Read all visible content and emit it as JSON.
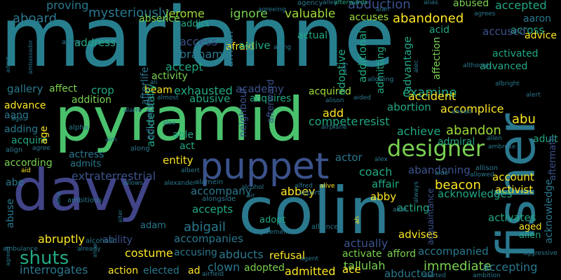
{
  "palette": {
    "background": "#000000",
    "colors": [
      "#440154",
      "#46327e",
      "#365c8d",
      "#277f8e",
      "#1fa187",
      "#4ac16d",
      "#a0da39",
      "#fde725"
    ]
  },
  "words": [
    {
      "text": "marianne",
      "color": "#277f8e"
    },
    {
      "text": "pyramid",
      "color": "#4ac16d"
    },
    {
      "text": "colin",
      "color": "#2a788e"
    },
    {
      "text": "davy",
      "color": "#414487"
    },
    {
      "text": "fisher",
      "color": "#2a788e"
    },
    {
      "text": "puppet",
      "color": "#3b528b"
    },
    {
      "text": "designer",
      "color": "#7ad151"
    },
    {
      "text": "shuts",
      "color": "#22a884"
    },
    {
      "text": "abduction",
      "color": "#3b528b"
    },
    {
      "text": "abandoned",
      "color": "#fde725"
    },
    {
      "text": "mysteriously",
      "color": "#2a788e"
    },
    {
      "text": "jerome",
      "color": "#a0da39"
    },
    {
      "text": "ignore",
      "color": "#7ad151"
    },
    {
      "text": "valuable",
      "color": "#a0da39"
    },
    {
      "text": "aboard",
      "color": "#2a788e"
    },
    {
      "text": "proving",
      "color": "#2a788e"
    },
    {
      "text": "absence",
      "color": "#7ad151"
    },
    {
      "text": "addict",
      "color": "#22a884"
    },
    {
      "text": "accuses",
      "color": "#a0da39"
    },
    {
      "text": "abused",
      "color": "#7ad151"
    },
    {
      "text": "accepted",
      "color": "#22a884"
    },
    {
      "text": "aaron",
      "color": "#2a788e"
    },
    {
      "text": "across",
      "color": "#22a884"
    },
    {
      "text": "advice",
      "color": "#fde725"
    },
    {
      "text": "accused",
      "color": "#3b528b"
    },
    {
      "text": "activated",
      "color": "#22a884"
    },
    {
      "text": "address",
      "color": "#22a884"
    },
    {
      "text": "access",
      "color": "#3b528b"
    },
    {
      "text": "abraham",
      "color": "#2a788e"
    },
    {
      "text": "accept",
      "color": "#22a884"
    },
    {
      "text": "activity",
      "color": "#7ad151"
    },
    {
      "text": "gallery",
      "color": "#2a788e"
    },
    {
      "text": "affect",
      "color": "#7ad151"
    },
    {
      "text": "addition",
      "color": "#7ad151"
    },
    {
      "text": "crop",
      "color": "#22a884"
    },
    {
      "text": "beam",
      "color": "#fde725"
    },
    {
      "text": "exhausted",
      "color": "#22a884"
    },
    {
      "text": "academy",
      "color": "#3b528b"
    },
    {
      "text": "acquired",
      "color": "#a0da39"
    },
    {
      "text": "acquires",
      "color": "#22a884"
    },
    {
      "text": "abusive",
      "color": "#22a884"
    },
    {
      "text": "examine",
      "color": "#22a884"
    },
    {
      "text": "accident",
      "color": "#fde725"
    },
    {
      "text": "accomplice",
      "color": "#fde725"
    },
    {
      "text": "advanced",
      "color": "#22a884"
    },
    {
      "text": "advance",
      "color": "#fde725"
    },
    {
      "text": "aang",
      "color": "#2a788e"
    },
    {
      "text": "adding",
      "color": "#2a788e"
    },
    {
      "text": "acquire",
      "color": "#22a884"
    },
    {
      "text": "according",
      "color": "#7ad151"
    },
    {
      "text": "actress",
      "color": "#2a788e"
    },
    {
      "text": "admits",
      "color": "#2a788e"
    },
    {
      "text": "abortion",
      "color": "#22a884"
    },
    {
      "text": "compete",
      "color": "#22a884"
    },
    {
      "text": "resist",
      "color": "#22a884"
    },
    {
      "text": "achieve",
      "color": "#22a884"
    },
    {
      "text": "abandon",
      "color": "#a0da39"
    },
    {
      "text": "admiral",
      "color": "#22a884"
    },
    {
      "text": "abu",
      "color": "#fde725"
    },
    {
      "text": "adult",
      "color": "#22a884"
    },
    {
      "text": "able",
      "color": "#22a884"
    },
    {
      "text": "act",
      "color": "#22a884"
    },
    {
      "text": "entity",
      "color": "#fde725"
    },
    {
      "text": "add",
      "color": "#fde725"
    },
    {
      "text": "actor",
      "color": "#2a788e"
    },
    {
      "text": "coach",
      "color": "#22a884"
    },
    {
      "text": "abandoning",
      "color": "#3b528b"
    },
    {
      "text": "extraterrestrial",
      "color": "#3b528b"
    },
    {
      "text": "abe",
      "color": "#2a788e"
    },
    {
      "text": "affair",
      "color": "#22a884"
    },
    {
      "text": "beacon",
      "color": "#fde725"
    },
    {
      "text": "account",
      "color": "#fde725"
    },
    {
      "text": "activist",
      "color": "#fde725"
    },
    {
      "text": "abbey",
      "color": "#fde725"
    },
    {
      "text": "accompany",
      "color": "#2a788e"
    },
    {
      "text": "accepts",
      "color": "#22a884"
    },
    {
      "text": "abby",
      "color": "#fde725"
    },
    {
      "text": "acknowledges",
      "color": "#22a884"
    },
    {
      "text": "acting",
      "color": "#22a884"
    },
    {
      "text": "activates",
      "color": "#22a884"
    },
    {
      "text": "aged",
      "color": "#fde725"
    },
    {
      "text": "alien",
      "color": "#22a884"
    },
    {
      "text": "abigail",
      "color": "#2a788e"
    },
    {
      "text": "adam",
      "color": "#2a788e"
    },
    {
      "text": "accompanies",
      "color": "#2a788e"
    },
    {
      "text": "adopt",
      "color": "#22a884"
    },
    {
      "text": "actually",
      "color": "#3b528b"
    },
    {
      "text": "advises",
      "color": "#fde725"
    },
    {
      "text": "abruptly",
      "color": "#fde725"
    },
    {
      "text": "ability",
      "color": "#3b528b"
    },
    {
      "text": "costume",
      "color": "#fde725"
    },
    {
      "text": "accusing",
      "color": "#2a788e"
    },
    {
      "text": "abducts",
      "color": "#2a788e"
    },
    {
      "text": "accompanied",
      "color": "#2a788e"
    },
    {
      "text": "interrogates",
      "color": "#2a788e"
    },
    {
      "text": "refusal",
      "color": "#fde725"
    },
    {
      "text": "activate",
      "color": "#7ad151"
    },
    {
      "text": "afford",
      "color": "#7ad151"
    },
    {
      "text": "tallulah",
      "color": "#7ad151"
    },
    {
      "text": "immediate",
      "color": "#7ad151"
    },
    {
      "text": "accepting",
      "color": "#2a788e"
    },
    {
      "text": "action",
      "color": "#fde725"
    },
    {
      "text": "elected",
      "color": "#2a788e"
    },
    {
      "text": "ad",
      "color": "#fde725"
    },
    {
      "text": "clown",
      "color": "#2a788e"
    },
    {
      "text": "adopted",
      "color": "#7ad151"
    },
    {
      "text": "admitted",
      "color": "#fde725"
    },
    {
      "text": "ace",
      "color": "#fde725"
    },
    {
      "text": "abducted",
      "color": "#2a788e"
    },
    {
      "text": "acknowledge",
      "color": "#2a788e"
    },
    {
      "text": "afterlife",
      "color": "#2a788e"
    },
    {
      "text": "adventure",
      "color": "#3b528b"
    },
    {
      "text": "accidentally",
      "color": "#22a884"
    },
    {
      "text": "afraid",
      "color": "#fde725"
    },
    {
      "text": "african",
      "color": "#2a788e"
    },
    {
      "text": "active",
      "color": "#22a884"
    },
    {
      "text": "actual",
      "color": "#22a884"
    },
    {
      "text": "adoptive",
      "color": "#22a884"
    },
    {
      "text": "additional",
      "color": "#22a884"
    },
    {
      "text": "admitting",
      "color": "#22a884"
    },
    {
      "text": "advantage",
      "color": "#22a884"
    },
    {
      "text": "affection",
      "color": "#7ad151"
    },
    {
      "text": "acid",
      "color": "#22a884"
    },
    {
      "text": "age",
      "color": "#fde725"
    },
    {
      "text": "abuse",
      "color": "#2a788e"
    },
    {
      "text": "neighbour",
      "color": "#3b528b"
    },
    {
      "text": "afterward",
      "color": "#3b528b"
    },
    {
      "text": "aftermath",
      "color": "#3b528b"
    },
    {
      "text": "acquaintance",
      "color": "#3b528b"
    },
    {
      "text": "alcoholic",
      "color": "#2a788e"
    },
    {
      "text": "agency",
      "color": "#2a788e"
    },
    {
      "text": "afterwards",
      "color": "#22a884"
    },
    {
      "text": "alias",
      "color": "#2a788e"
    },
    {
      "text": "alan",
      "color": "#2a788e"
    },
    {
      "text": "agrees",
      "color": "#2a788e"
    },
    {
      "text": "agreeing",
      "color": "#2a788e"
    },
    {
      "text": "alley",
      "color": "#2a788e"
    },
    {
      "text": "alone",
      "color": "#2a788e"
    },
    {
      "text": "admit",
      "color": "#2a788e"
    },
    {
      "text": "ambassador",
      "color": "#2a788e"
    },
    {
      "text": "alternate",
      "color": "#2a788e"
    },
    {
      "text": "aging",
      "color": "#2a788e"
    },
    {
      "text": "ally",
      "color": "#2a788e"
    },
    {
      "text": "although",
      "color": "#2a788e"
    },
    {
      "text": "alec",
      "color": "#2a788e"
    },
    {
      "text": "allowing",
      "color": "#2a788e"
    },
    {
      "text": "ali",
      "color": "#2a788e"
    },
    {
      "text": "albright",
      "color": "#2a788e"
    },
    {
      "text": "alert",
      "color": "#2a788e"
    },
    {
      "text": "almost",
      "color": "#2a788e"
    },
    {
      "text": "alison",
      "color": "#2a788e"
    },
    {
      "text": "aided",
      "color": "#2a788e"
    },
    {
      "text": "ahead",
      "color": "#2a788e"
    },
    {
      "text": "alarm",
      "color": "#2a788e"
    },
    {
      "text": "ago",
      "color": "#2a788e"
    },
    {
      "text": "alpha",
      "color": "#2a788e"
    },
    {
      "text": "also",
      "color": "#2a788e"
    },
    {
      "text": "airplane",
      "color": "#2a788e"
    },
    {
      "text": "allen",
      "color": "#2a788e"
    },
    {
      "text": "ambrose",
      "color": "#2a788e"
    },
    {
      "text": "align",
      "color": "#2a788e"
    },
    {
      "text": "agree",
      "color": "#2a788e"
    },
    {
      "text": "aim",
      "color": "#2a788e"
    },
    {
      "text": "along",
      "color": "#2a788e"
    },
    {
      "text": "aid",
      "color": "#fde725"
    },
    {
      "text": "albert",
      "color": "#2a788e"
    },
    {
      "text": "alex",
      "color": "#2a788e"
    },
    {
      "text": "allison",
      "color": "#2a788e"
    },
    {
      "text": "alive",
      "color": "#fde725"
    },
    {
      "text": "aide",
      "color": "#2a788e"
    },
    {
      "text": "allowed",
      "color": "#2a788e"
    },
    {
      "text": "allows",
      "color": "#2a788e"
    },
    {
      "text": "alexander",
      "color": "#2a788e"
    },
    {
      "text": "alamein",
      "color": "#2a788e"
    },
    {
      "text": "alice",
      "color": "#2a788e"
    },
    {
      "text": "ambitious",
      "color": "#2a788e"
    },
    {
      "text": "alter",
      "color": "#2a788e"
    },
    {
      "text": "alongside",
      "color": "#2a788e"
    },
    {
      "text": "alcohol",
      "color": "#2a788e"
    },
    {
      "text": "air",
      "color": "#2a788e"
    },
    {
      "text": "alfred",
      "color": "#2a788e"
    },
    {
      "text": "airport",
      "color": "#2a788e"
    },
    {
      "text": "always",
      "color": "#2a788e"
    },
    {
      "text": "altar",
      "color": "#2a788e"
    },
    {
      "text": "agreement",
      "color": "#2a788e"
    },
    {
      "text": "alliance",
      "color": "#2a788e"
    },
    {
      "text": "ah",
      "color": "#fde725"
    },
    {
      "text": "ambulance",
      "color": "#2a788e"
    },
    {
      "text": "already",
      "color": "#2a788e"
    },
    {
      "text": "agent",
      "color": "#2a788e"
    },
    {
      "text": "aggressive",
      "color": "#2a788e"
    },
    {
      "text": "agreed",
      "color": "#2a788e"
    },
    {
      "text": "allow",
      "color": "#2a788e"
    },
    {
      "text": "airfield",
      "color": "#2a788e"
    },
    {
      "text": "alerted",
      "color": "#2a788e"
    },
    {
      "text": "ambition",
      "color": "#2a788e"
    },
    {
      "text": "aircraft",
      "color": "#2a788e"
    }
  ]
}
